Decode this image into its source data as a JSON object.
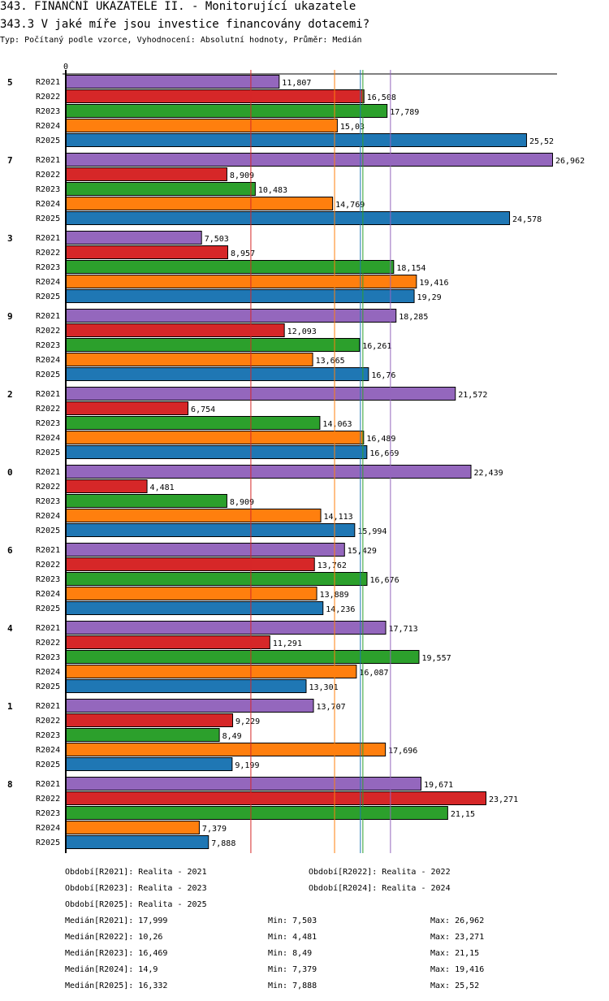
{
  "header": {
    "title": "343. FINANČNÍ UKAZATELE II. - Monitorující ukazatele",
    "question": "343.3 V jaké míře jsou investice financovány dotacemi?",
    "subtitle": "Typ: Počítaný podle vzorce, Vyhodnocení: Absolutní hodnoty, Průměr: Medián"
  },
  "chart_data": {
    "type": "bar",
    "orientation": "horizontal",
    "title": "343.3 V jaké míře jsou investice financovány dotacemi?",
    "xlabel": "",
    "ylabel": "",
    "x_tick_labels": [
      "0"
    ],
    "xlim": [
      0,
      26.962
    ],
    "grid": false,
    "categories": [
      "5",
      "7",
      "3",
      "9",
      "2",
      "0",
      "6",
      "4",
      "1",
      "8"
    ],
    "series": [
      {
        "name": "R2021",
        "color": "#9467bd",
        "values": [
          11.807,
          26.962,
          7.503,
          18.285,
          21.572,
          22.439,
          15.429,
          17.713,
          13.707,
          19.671
        ],
        "labels": [
          "11,807",
          "26,962",
          "7,503",
          "18,285",
          "21,572",
          "22,439",
          "15,429",
          "17,713",
          "13,707",
          "19,671"
        ]
      },
      {
        "name": "R2022",
        "color": "#d62728",
        "values": [
          16.508,
          8.909,
          8.957,
          12.093,
          6.754,
          4.481,
          13.762,
          11.291,
          9.229,
          23.271
        ],
        "labels": [
          "16,508",
          "8,909",
          "8,957",
          "12,093",
          "6,754",
          "4,481",
          "13,762",
          "11,291",
          "9,229",
          "23,271"
        ]
      },
      {
        "name": "R2023",
        "color": "#2ca02c",
        "values": [
          17.789,
          10.483,
          18.154,
          16.261,
          14.063,
          8.909,
          16.676,
          19.557,
          8.49,
          21.15
        ],
        "labels": [
          "17,789",
          "10,483",
          "18,154",
          "16,261",
          "14,063",
          "8,909",
          "16,676",
          "19,557",
          "8,49",
          "21,15"
        ]
      },
      {
        "name": "R2024",
        "color": "#ff7f0e",
        "values": [
          15.03,
          14.769,
          19.416,
          13.665,
          16.489,
          14.113,
          13.889,
          16.087,
          17.696,
          7.379
        ],
        "labels": [
          "15,03",
          "14,769",
          "19,416",
          "13,665",
          "16,489",
          "14,113",
          "13,889",
          "16,087",
          "17,696",
          "7,379"
        ]
      },
      {
        "name": "R2025",
        "color": "#1f77b4",
        "values": [
          25.52,
          24.578,
          19.29,
          16.76,
          16.669,
          15.994,
          14.236,
          13.301,
          9.199,
          7.888
        ],
        "labels": [
          "25,52",
          "24,578",
          "19,29",
          "16,76",
          "16,669",
          "15,994",
          "14,236",
          "13,301",
          "9,199",
          "7,888"
        ]
      }
    ],
    "median_lines": [
      {
        "series": "R2021",
        "value": 17.999,
        "color": "#9467bd"
      },
      {
        "series": "R2022",
        "value": 10.26,
        "color": "#d62728"
      },
      {
        "series": "R2023",
        "value": 16.469,
        "color": "#2ca02c"
      },
      {
        "series": "R2024",
        "value": 14.9,
        "color": "#ff7f0e"
      },
      {
        "series": "R2025",
        "value": 16.332,
        "color": "#1f77b4"
      }
    ]
  },
  "legend": {
    "periods": [
      "Období[R2021]: Realita - 2021",
      "Období[R2022]: Realita - 2022",
      "Období[R2023]: Realita - 2023",
      "Období[R2024]: Realita - 2024",
      "Období[R2025]: Realita - 2025"
    ],
    "stats": [
      {
        "median": "Medián[R2021]: 17,999",
        "min": "Min: 7,503",
        "max": "Max: 26,962"
      },
      {
        "median": "Medián[R2022]: 10,26",
        "min": "Min: 4,481",
        "max": "Max: 23,271"
      },
      {
        "median": "Medián[R2023]: 16,469",
        "min": "Min: 8,49",
        "max": "Max: 21,15"
      },
      {
        "median": "Medián[R2024]: 14,9",
        "min": "Min: 7,379",
        "max": "Max: 19,416"
      },
      {
        "median": "Medián[R2025]: 16,332",
        "min": "Min: 7,888",
        "max": "Max: 25,52"
      }
    ]
  }
}
